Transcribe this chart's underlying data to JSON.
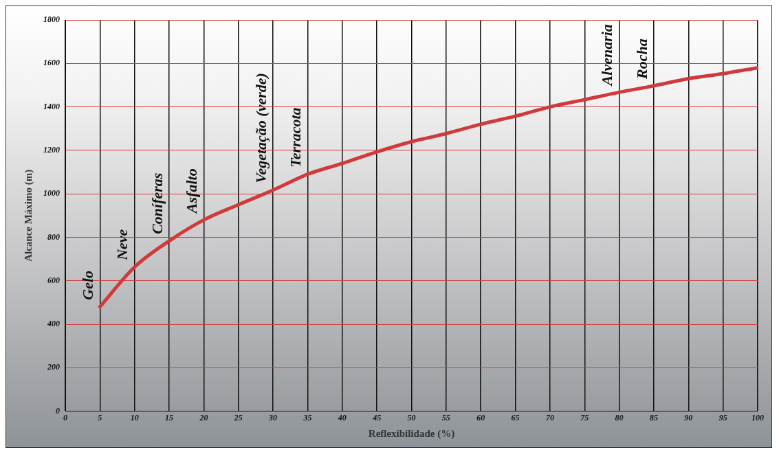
{
  "chart_data": {
    "type": "line",
    "xlabel": "Reflexibilidade (%)",
    "ylabel": "Alcance Máximo (m)",
    "x": [
      5,
      10,
      15,
      20,
      25,
      30,
      35,
      40,
      45,
      50,
      55,
      60,
      65,
      70,
      75,
      80,
      85,
      90,
      95,
      100
    ],
    "series": [
      {
        "color": "#d03a3a",
        "values": [
          480,
          663,
          783,
          880,
          950,
          1017,
          1090,
          1140,
          1193,
          1240,
          1277,
          1320,
          1357,
          1400,
          1433,
          1467,
          1497,
          1530,
          1553,
          1580
        ]
      }
    ],
    "xlim": [
      0,
      100
    ],
    "xticks": [
      0,
      5,
      10,
      15,
      20,
      25,
      30,
      35,
      40,
      45,
      50,
      55,
      60,
      65,
      70,
      75,
      80,
      85,
      90,
      95,
      100
    ],
    "ylim": [
      0,
      1800
    ],
    "yticks": [
      0,
      200,
      400,
      600,
      800,
      1000,
      1200,
      1400,
      1600,
      1800
    ],
    "grid": true,
    "legend": false,
    "marker": "none",
    "line_style": "solid",
    "annotations": [
      {
        "text": "Gelo",
        "x": 5,
        "y": 480
      },
      {
        "text": "Neve",
        "x": 10,
        "y": 663
      },
      {
        "text": "Coníferas",
        "x": 15,
        "y": 783
      },
      {
        "text": "Asfalto",
        "x": 20,
        "y": 880
      },
      {
        "text": "Vegetação (verde)",
        "x": 30,
        "y": 1017
      },
      {
        "text": "Terracota",
        "x": 35,
        "y": 1090
      },
      {
        "text": "Alvenaria",
        "x": 80,
        "y": 1467
      },
      {
        "text": "Rocha",
        "x": 85,
        "y": 1497
      }
    ]
  }
}
